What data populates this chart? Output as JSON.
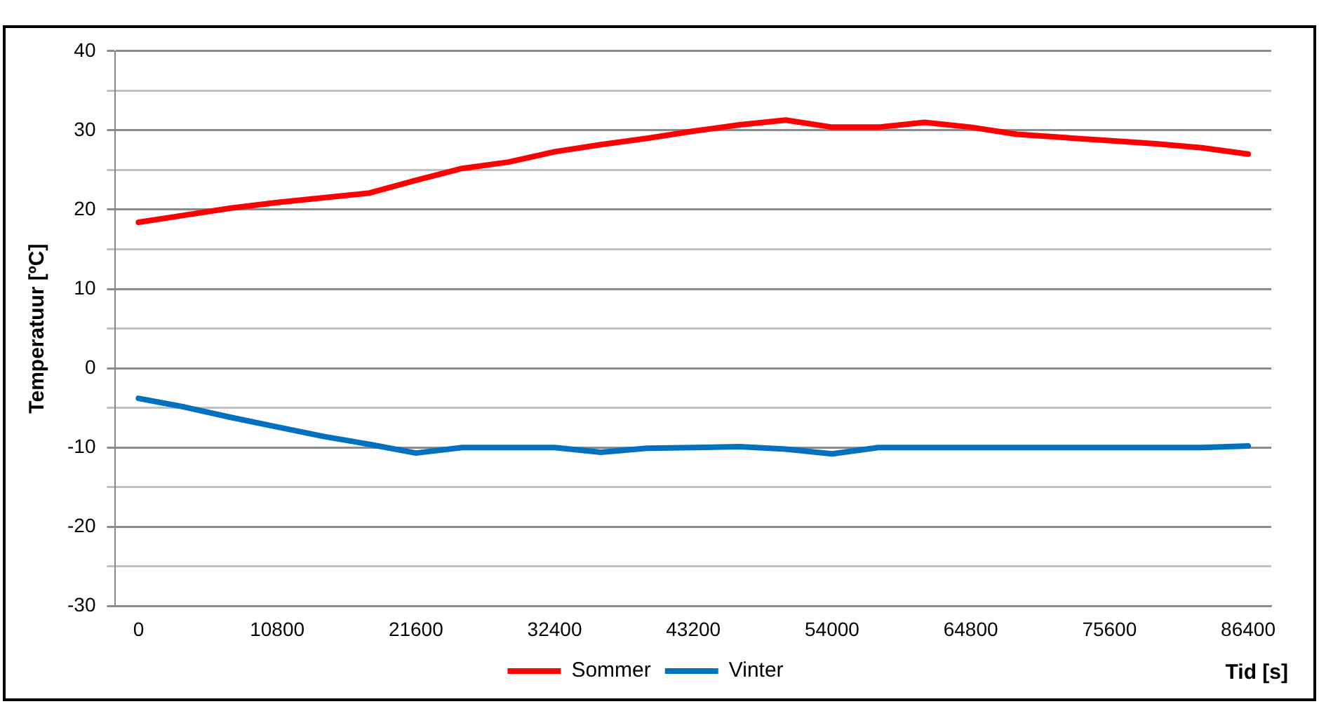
{
  "chart_data": {
    "type": "line",
    "xlabel": "Tid [s]",
    "ylabel": "Temperatuur [ºC]",
    "x": [
      0,
      3600,
      7200,
      10800,
      14400,
      18000,
      21600,
      25200,
      28800,
      32400,
      36000,
      39600,
      43200,
      46800,
      50400,
      54000,
      57600,
      61200,
      64800,
      68400,
      72000,
      75600,
      79200,
      82800,
      86400
    ],
    "series": [
      {
        "name": "Sommer",
        "color": "#ff0000",
        "values": [
          18.4,
          19.3,
          20.2,
          20.9,
          21.5,
          22.1,
          23.7,
          25.2,
          26.0,
          27.3,
          28.2,
          29.0,
          29.9,
          30.7,
          31.3,
          30.4,
          30.4,
          31.0,
          30.4,
          29.5,
          29.1,
          28.7,
          28.3,
          27.8,
          27.0
        ]
      },
      {
        "name": "Vinter",
        "color": "#0070c0",
        "values": [
          -3.8,
          -4.9,
          -6.2,
          -7.4,
          -8.6,
          -9.6,
          -10.7,
          -10.0,
          -10.0,
          -10.0,
          -10.6,
          -10.1,
          -10.0,
          -9.9,
          -10.2,
          -10.8,
          -10.0,
          -10.0,
          -10.0,
          -10.0,
          -10.0,
          -10.0,
          -10.0,
          -10.0,
          -9.8
        ]
      }
    ],
    "xlim": [
      -1800,
      88200
    ],
    "xticks": [
      0,
      10800,
      21600,
      32400,
      43200,
      54000,
      64800,
      75600,
      86400
    ],
    "ylim": [
      -30,
      40
    ],
    "yticks": [
      -30,
      {
        "value": -25,
        "label": null
      },
      -20,
      {
        "value": -15,
        "label": null
      },
      -10,
      {
        "value": -5,
        "label": null
      },
      0,
      {
        "value": 5,
        "label": null
      },
      10,
      {
        "value": 15,
        "label": null
      },
      20,
      {
        "value": 25,
        "label": null
      },
      30,
      {
        "value": 35,
        "label": null
      },
      40
    ],
    "grid": "y",
    "legend": "bottom",
    "marker": "none",
    "line_style": "solid"
  }
}
